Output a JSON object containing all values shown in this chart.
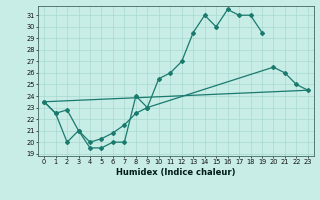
{
  "bg_color": "#c8ece6",
  "grid_color": "#a8d8d0",
  "line_color": "#1a7a6e",
  "xlabel": "Humidex (Indice chaleur)",
  "ylim": [
    18.8,
    31.8
  ],
  "xlim": [
    -0.5,
    23.5
  ],
  "x_ticks": [
    0,
    1,
    2,
    3,
    4,
    5,
    6,
    7,
    8,
    9,
    10,
    11,
    12,
    13,
    14,
    15,
    16,
    17,
    18,
    19,
    20,
    21,
    22,
    23
  ],
  "y_ticks": [
    19,
    20,
    21,
    22,
    23,
    24,
    25,
    26,
    27,
    28,
    29,
    30,
    31
  ],
  "line1_x": [
    0,
    1,
    2,
    3,
    4,
    5,
    6,
    7,
    8,
    9,
    10,
    11,
    12,
    13,
    14,
    15,
    16,
    17,
    18,
    19
  ],
  "line1_y": [
    23.5,
    22.5,
    20.0,
    21.0,
    19.5,
    19.5,
    20.0,
    20.0,
    24.0,
    23.0,
    25.5,
    26.0,
    27.0,
    29.5,
    31.0,
    30.0,
    31.5,
    31.0,
    31.0,
    29.5
  ],
  "line2_x": [
    0,
    1,
    2,
    3,
    4,
    5,
    6,
    7,
    8,
    9,
    20,
    21,
    22,
    23
  ],
  "line2_y": [
    23.5,
    22.5,
    22.8,
    21.0,
    20.0,
    20.3,
    20.8,
    21.5,
    22.5,
    23.0,
    26.5,
    26.0,
    25.0,
    24.5
  ],
  "line3_x": [
    0,
    23
  ],
  "line3_y": [
    23.5,
    24.5
  ]
}
